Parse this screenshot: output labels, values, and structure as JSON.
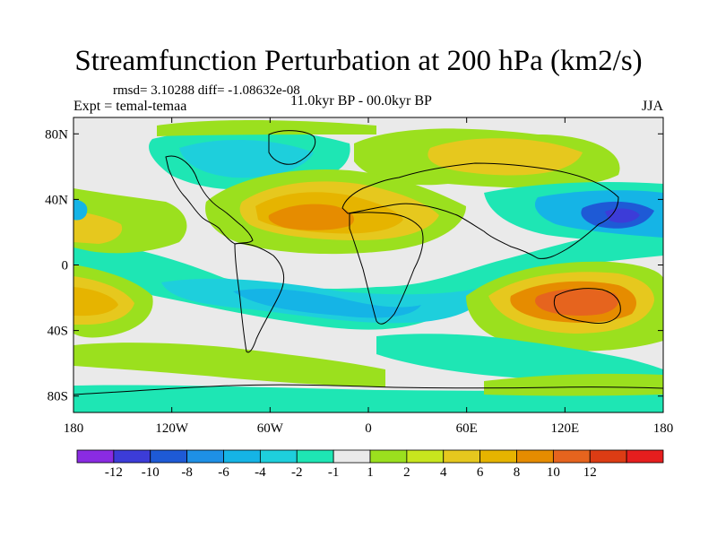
{
  "figure": {
    "title": "Streamfunction Perturbation at 200 hPa (km2/s)",
    "stats": "rmsd= 3.10288 diff= -1.08632e-08",
    "experiment": "Expt = temal-temaa",
    "period": "11.0kyr BP - 00.0kyr BP",
    "season": "JJA"
  },
  "axes": {
    "lat_ticks": [
      "80N",
      "40N",
      "0",
      "40S",
      "80S"
    ],
    "lon_ticks": [
      "180",
      "120W",
      "60W",
      "0",
      "60E",
      "120E",
      "180"
    ]
  },
  "colorbar": {
    "colors": [
      "#8a2be2",
      "#3c3cd8",
      "#1e5ad6",
      "#1e90e6",
      "#15b4e6",
      "#1ecfdc",
      "#1ee6b4",
      "#eaeaea",
      "#9be01e",
      "#c8e61e",
      "#e6c81e",
      "#e6b400",
      "#e68c00",
      "#e6641e",
      "#dc3c14",
      "#e61e1e"
    ],
    "labels": [
      "-12",
      "-10",
      "-8",
      "-6",
      "-4",
      "-2",
      "-1",
      "1",
      "2",
      "4",
      "6",
      "8",
      "10",
      "12"
    ]
  },
  "map_features": {
    "positive_anomalies": [
      {
        "name": "North Atlantic / North Africa high",
        "value": 10
      },
      {
        "name": "Australia high",
        "value": 10
      },
      {
        "name": "Eurasia high",
        "value": 4
      },
      {
        "name": "South Pacific high",
        "value": 6
      }
    ],
    "negative_anomalies": [
      {
        "name": "Northwest Pacific low",
        "value": -10
      },
      {
        "name": "North America low",
        "value": -2
      },
      {
        "name": "South Atlantic low",
        "value": -4
      }
    ]
  }
}
